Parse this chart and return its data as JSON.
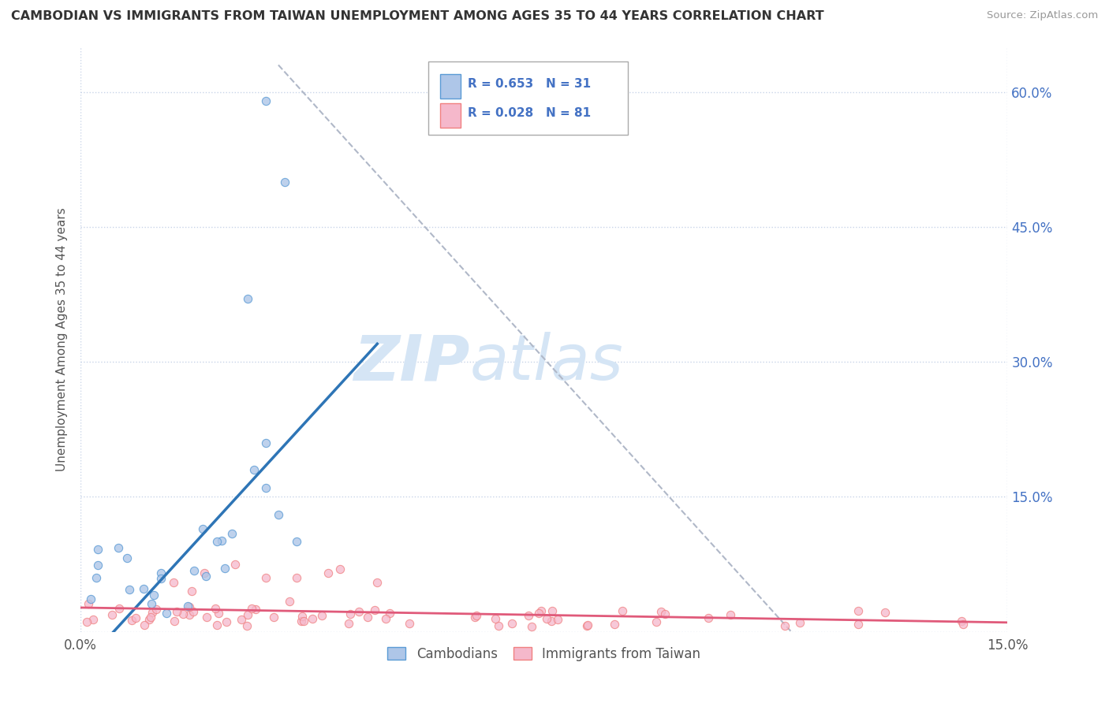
{
  "title": "CAMBODIAN VS IMMIGRANTS FROM TAIWAN UNEMPLOYMENT AMONG AGES 35 TO 44 YEARS CORRELATION CHART",
  "source": "Source: ZipAtlas.com",
  "ylabel_label": "Unemployment Among Ages 35 to 44 years",
  "legend_label1": "Cambodians",
  "legend_label2": "Immigrants from Taiwan",
  "R1": 0.653,
  "N1": 31,
  "R2": 0.028,
  "N2": 81,
  "color1": "#aec6e8",
  "color2": "#f5b8cb",
  "edge_color1": "#5b9bd5",
  "edge_color2": "#f08080",
  "trend_color1": "#2e75b6",
  "trend_color2": "#e05a7a",
  "diag_color": "#b0b8c8",
  "background_color": "#ffffff",
  "grid_color": "#c8d4e8",
  "tick_color_right": "#4472c4",
  "watermark_color": "#d5e5f5",
  "xlim": [
    0.0,
    0.15
  ],
  "ylim": [
    0.0,
    0.65
  ],
  "xticks": [
    0.0,
    0.15
  ],
  "yticks": [
    0.0,
    0.15,
    0.3,
    0.45,
    0.6
  ],
  "ytick_labels": [
    "",
    "15.0%",
    "30.0%",
    "45.0%",
    "60.0%"
  ],
  "xtick_labels": [
    "0.0%",
    "15.0%"
  ]
}
